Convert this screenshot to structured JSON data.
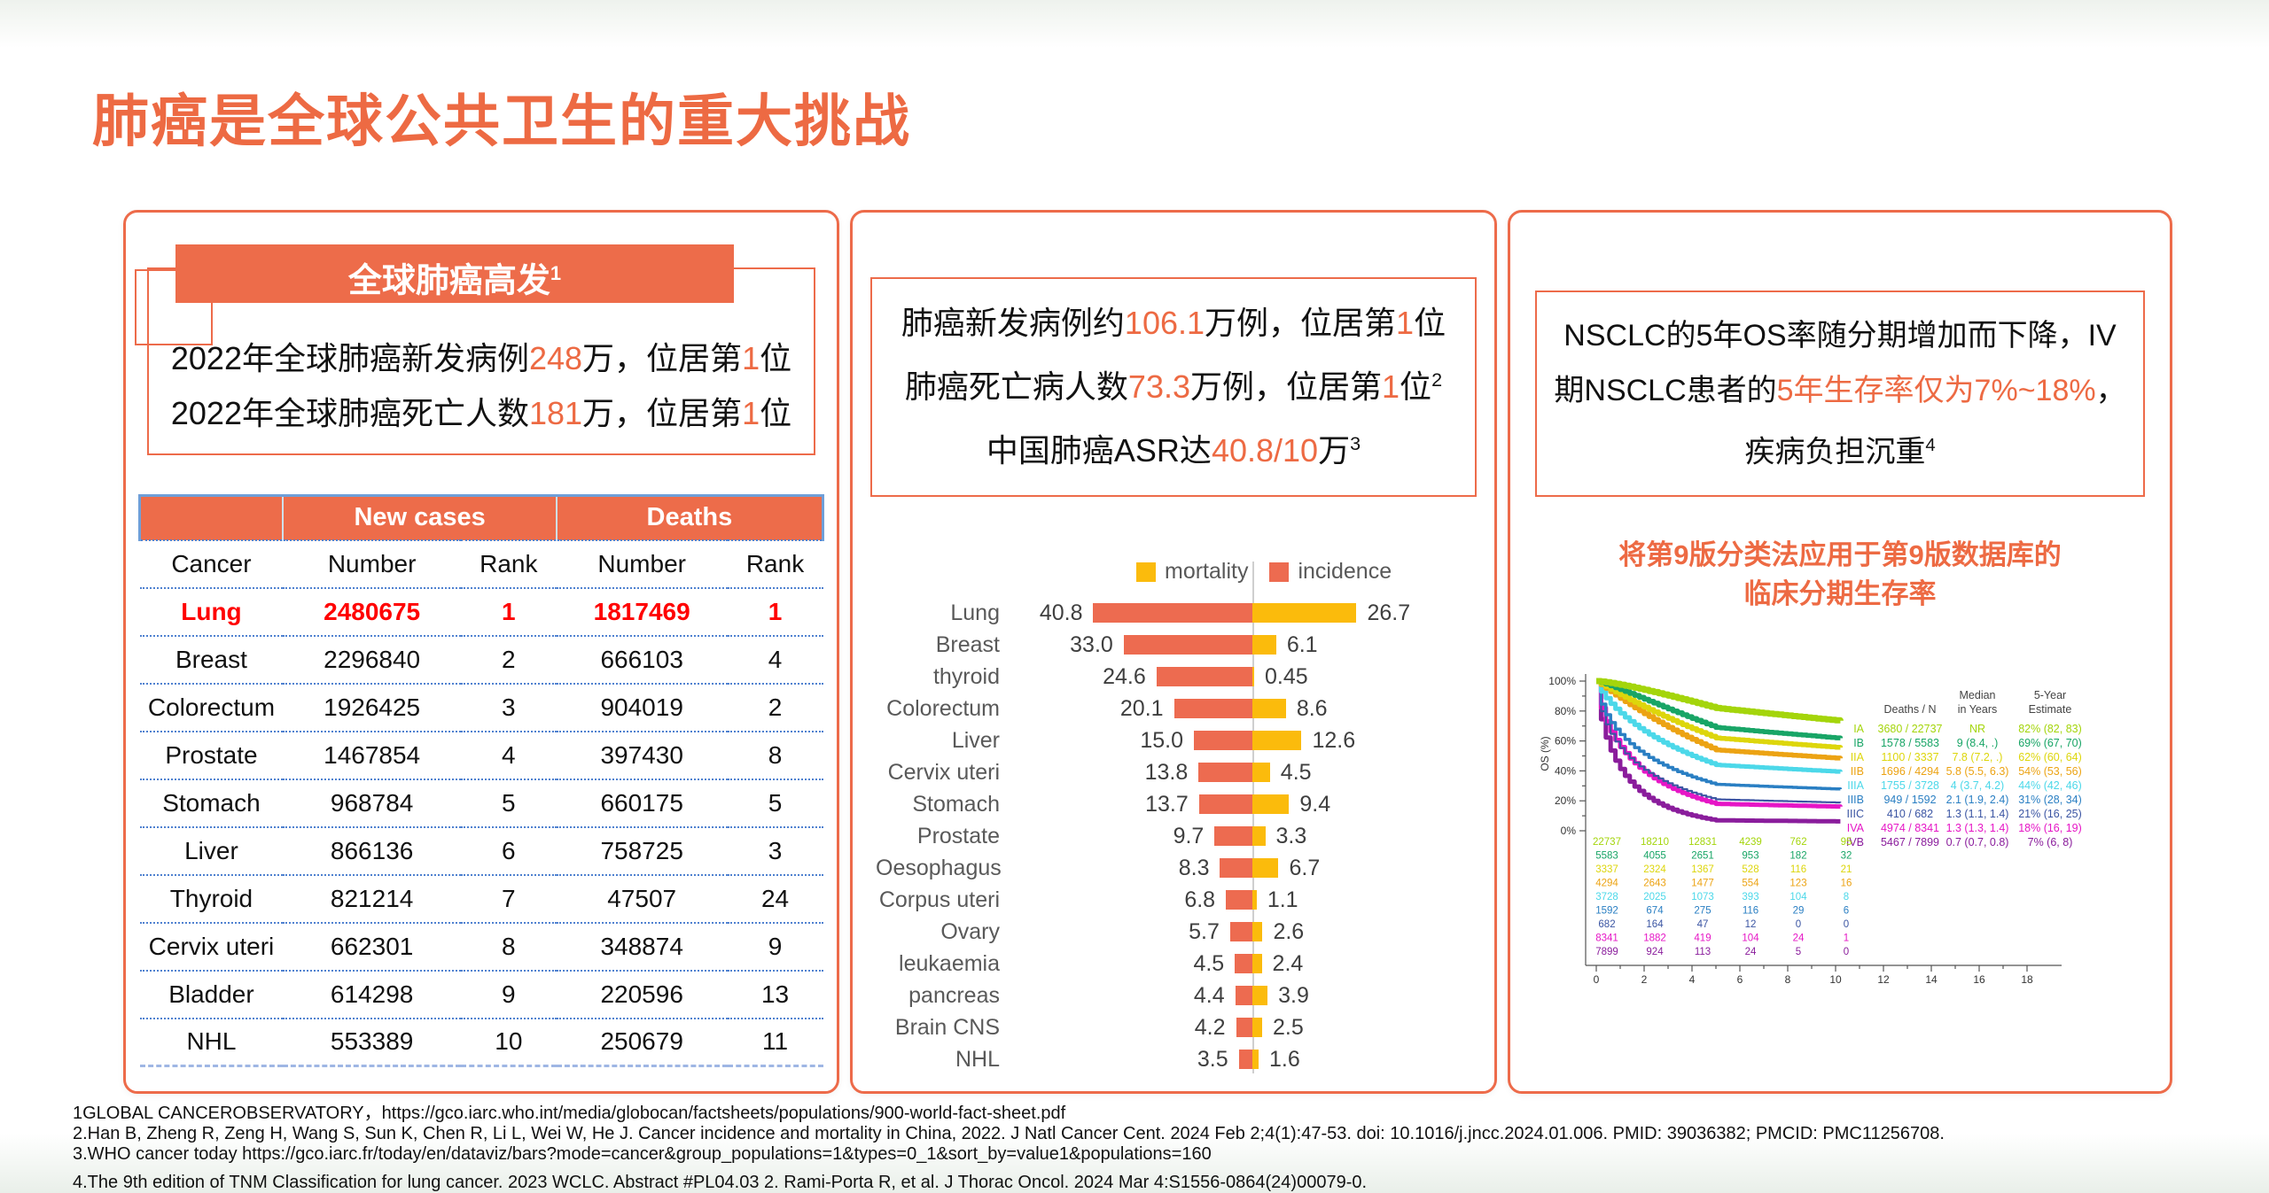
{
  "slide": {
    "title": "肺癌是全球公共卫生的重大挑战",
    "accent_color": "#ED6A43"
  },
  "left_panel": {
    "banner": [
      {
        "t": "全球肺癌高发"
      },
      {
        "t": "1",
        "sup": true
      }
    ],
    "stats_lines": [
      [
        {
          "t": "2022年全球肺癌新发病例"
        },
        {
          "t": "248",
          "hl": true
        },
        {
          "t": "万，位居第"
        },
        {
          "t": "1",
          "hl": true
        },
        {
          "t": "位"
        }
      ],
      [
        {
          "t": "2022年全球肺癌死亡人数"
        },
        {
          "t": "181",
          "hl": true
        },
        {
          "t": "万，位居第"
        },
        {
          "t": "1",
          "hl": true
        },
        {
          "t": "位"
        }
      ]
    ],
    "table": {
      "group_headers": [
        "New cases",
        "Deaths"
      ],
      "columns": [
        "Cancer",
        "Number",
        "Rank",
        "Number",
        "Rank"
      ],
      "rows": [
        {
          "cancer": "Lung",
          "new_cases": "2480675",
          "new_rank": "1",
          "deaths": "1817469",
          "death_rank": "1",
          "highlight": true
        },
        {
          "cancer": "Breast",
          "new_cases": "2296840",
          "new_rank": "2",
          "deaths": "666103",
          "death_rank": "4"
        },
        {
          "cancer": "Colorectum",
          "new_cases": "1926425",
          "new_rank": "3",
          "deaths": "904019",
          "death_rank": "2"
        },
        {
          "cancer": "Prostate",
          "new_cases": "1467854",
          "new_rank": "4",
          "deaths": "397430",
          "death_rank": "8"
        },
        {
          "cancer": "Stomach",
          "new_cases": "968784",
          "new_rank": "5",
          "deaths": "660175",
          "death_rank": "5"
        },
        {
          "cancer": "Liver",
          "new_cases": "866136",
          "new_rank": "6",
          "deaths": "758725",
          "death_rank": "3"
        },
        {
          "cancer": "Thyroid",
          "new_cases": "821214",
          "new_rank": "7",
          "deaths": "47507",
          "death_rank": "24"
        },
        {
          "cancer": "Cervix uteri",
          "new_cases": "662301",
          "new_rank": "8",
          "deaths": "348874",
          "death_rank": "9"
        },
        {
          "cancer": "Bladder",
          "new_cases": "614298",
          "new_rank": "9",
          "deaths": "220596",
          "death_rank": "13"
        },
        {
          "cancer": "NHL",
          "new_cases": "553389",
          "new_rank": "10",
          "deaths": "250679",
          "death_rank": "11"
        }
      ],
      "highlight_color": "#FF0000",
      "separator_color": "#4f81d0"
    }
  },
  "middle_panel": {
    "headline_lines": [
      [
        {
          "t": "肺癌新发病例约"
        },
        {
          "t": "106.1",
          "hl": true
        },
        {
          "t": "万例，位居第"
        },
        {
          "t": "1",
          "hl": true
        },
        {
          "t": "位"
        }
      ],
      [
        {
          "t": "肺癌死亡病人数"
        },
        {
          "t": "73.3",
          "hl": true
        },
        {
          "t": "万例，位居第"
        },
        {
          "t": "1",
          "hl": true
        },
        {
          "t": "位"
        },
        {
          "t": "2",
          "sup": true
        }
      ],
      [
        {
          "t": "中国肺癌ASR达"
        },
        {
          "t": "40.8/10",
          "hl": true
        },
        {
          "t": "万"
        },
        {
          "t": "3",
          "sup": true
        }
      ]
    ]
  },
  "right_panel": {
    "headline": [
      {
        "t": "NSCLC的5年OS率随分期增加而下降，IV期NSCLC患者的"
      },
      {
        "t": "5年生存率仅为7%~18%",
        "hl": true
      },
      {
        "t": "，疾病负担沉重"
      },
      {
        "t": "4",
        "sup": true
      }
    ],
    "caption_lines": [
      "将第9版分类法应用于第9版数据库的",
      "临床分期生存率"
    ]
  },
  "footnotes": [
    "1GLOBAL CANCEROBSERVATORY，https://gco.iarc.who.int/media/globocan/factsheets/populations/900-world-fact-sheet.pdf",
    "2.Han B, Zheng R, Zeng H, Wang S, Sun K, Chen R, Li L, Wei W, He J. Cancer incidence and mortality in China, 2022. J Natl Cancer Cent. 2024 Feb 2;4(1):47-53. doi: 10.1016/j.jncc.2024.01.006. PMID: 39036382; PMCID: PMC11256708.",
    "3.WHO cancer today https://gco.iarc.fr/today/en/dataviz/bars?mode=cancer&group_populations=1&types=0_1&sort_by=value1&populations=160",
    "4.The 9th edition of TNM Classification for lung cancer. 2023 WCLC. Abstract #PL04.03  2. Rami-Porta R, et al. J Thorac Oncol. 2024 Mar 4:S1556-0864(24)00079-0."
  ],
  "chart_data": [
    {
      "type": "bar",
      "name": "china-cancer-asr-diverging-bars",
      "orientation": "horizontal-diverging",
      "legend": [
        {
          "label": "mortality",
          "color": "#FBBB0C"
        },
        {
          "label": "incidence",
          "color": "#ED6B50"
        }
      ],
      "categories": [
        "Lung",
        "Breast",
        "thyroid",
        "Colorectum",
        "Liver",
        "Cervix uteri",
        "Stomach",
        "Prostate",
        "Oesophagus",
        "Corpus uteri",
        "Ovary",
        "leukaemia",
        "pancreas",
        "Brain CNS",
        "NHL"
      ],
      "series": [
        {
          "name": "incidence",
          "values": [
            "40.8",
            "33.0",
            "24.6",
            "20.1",
            "15.0",
            "13.8",
            "13.7",
            "9.7",
            "8.3",
            "6.8",
            "5.7",
            "4.5",
            "4.4",
            "4.2",
            "3.5"
          ]
        },
        {
          "name": "mortality",
          "values": [
            "26.7",
            "6.1",
            "0.45",
            "8.6",
            "12.6",
            "4.5",
            "9.4",
            "3.3",
            "6.7",
            "1.1",
            "2.6",
            "2.4",
            "3.9",
            "2.5",
            "1.6"
          ]
        }
      ],
      "max_scale": 42,
      "title": "",
      "xlabel": "",
      "ylabel": ""
    },
    {
      "type": "line",
      "name": "nsclc-os-by-clinical-stage",
      "ylabel": "OS (%)",
      "y_ticks": [
        "100%",
        "80%",
        "60%",
        "40%",
        "20%",
        "0%"
      ],
      "x_ticks": [
        0,
        2,
        4,
        6,
        8,
        10,
        12,
        14,
        16,
        18
      ],
      "x_range": [
        0,
        18.5
      ],
      "y_range": [
        0,
        100
      ],
      "legend_columns": [
        "Deaths / N",
        "Median in Years",
        "5-Year Estimate"
      ],
      "at_risk_times": [
        0,
        2,
        4,
        6,
        8,
        10
      ],
      "stages": [
        {
          "stage": "IA",
          "color": "#a4d50b",
          "deaths_n": "3680 / 22737",
          "median": "NR",
          "median_years": null,
          "five_year": "82% (82, 83)",
          "five_year_pct": 82,
          "at_risk": [
            22737,
            18210,
            12831,
            4239,
            762,
            95
          ]
        },
        {
          "stage": "IB",
          "color": "#18a566",
          "deaths_n": "1578 / 5583",
          "median": "9 (8.4, .)",
          "median_years": 9,
          "five_year": "69% (67, 70)",
          "five_year_pct": 69,
          "at_risk": [
            5583,
            4055,
            2651,
            953,
            182,
            32
          ]
        },
        {
          "stage": "IIA",
          "color": "#ddd60b",
          "deaths_n": "1100 / 3337",
          "median": "7.8 (7.2, .)",
          "median_years": 7.8,
          "five_year": "62% (60, 64)",
          "five_year_pct": 62,
          "at_risk": [
            3337,
            2324,
            1367,
            528,
            116,
            21
          ]
        },
        {
          "stage": "IIB",
          "color": "#eca313",
          "deaths_n": "1696 / 4294",
          "median": "5.8 (5.5, 6.3)",
          "median_years": 5.8,
          "five_year": "54% (53, 56)",
          "five_year_pct": 54,
          "at_risk": [
            4294,
            2643,
            1477,
            554,
            123,
            16
          ]
        },
        {
          "stage": "IIIA",
          "color": "#4cd8e9",
          "deaths_n": "1755 / 3728",
          "median": "4 (3.7, 4.2)",
          "median_years": 4,
          "five_year": "44% (42, 46)",
          "five_year_pct": 44,
          "at_risk": [
            3728,
            2025,
            1073,
            393,
            104,
            8
          ]
        },
        {
          "stage": "IIIB",
          "color": "#2a7fc3",
          "deaths_n": "949 / 1592",
          "median": "2.1 (1.9, 2.4)",
          "median_years": 2.1,
          "five_year": "31% (28, 34)",
          "five_year_pct": 31,
          "at_risk": [
            1592,
            674,
            275,
            116,
            29,
            6
          ]
        },
        {
          "stage": "IIIC",
          "color": "#3b55a3",
          "deaths_n": "410 / 682",
          "median": "1.3 (1.1, 1.4)",
          "median_years": 1.3,
          "five_year": "21% (16, 25)",
          "five_year_pct": 21,
          "at_risk": [
            682,
            164,
            47,
            12,
            0,
            0
          ]
        },
        {
          "stage": "IVA",
          "color": "#e616c6",
          "deaths_n": "4974 / 8341",
          "median": "1.3 (1.3, 1.4)",
          "median_years": 1.3,
          "five_year": "18% (16, 19)",
          "five_year_pct": 18,
          "at_risk": [
            8341,
            1882,
            419,
            104,
            24,
            1
          ]
        },
        {
          "stage": "IVB",
          "color": "#8a1d9c",
          "deaths_n": "5467 / 7899",
          "median": "0.7 (0.7, 0.8)",
          "median_years": 0.7,
          "five_year": "7% (6, 8)",
          "five_year_pct": 7,
          "at_risk": [
            7899,
            924,
            113,
            24,
            5,
            0
          ]
        }
      ]
    }
  ]
}
